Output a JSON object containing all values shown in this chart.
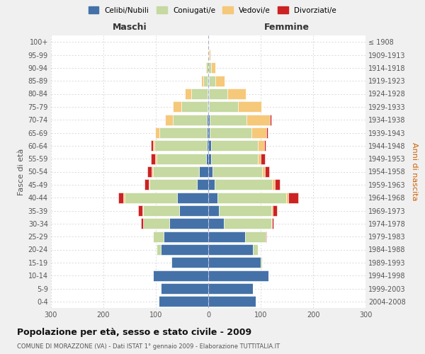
{
  "age_groups": [
    "0-4",
    "5-9",
    "10-14",
    "15-19",
    "20-24",
    "25-29",
    "30-34",
    "35-39",
    "40-44",
    "45-49",
    "50-54",
    "55-59",
    "60-64",
    "65-69",
    "70-74",
    "75-79",
    "80-84",
    "85-89",
    "90-94",
    "95-99",
    "100+"
  ],
  "birth_years": [
    "2004-2008",
    "1999-2003",
    "1994-1998",
    "1989-1993",
    "1984-1988",
    "1979-1983",
    "1974-1978",
    "1969-1973",
    "1964-1968",
    "1959-1963",
    "1954-1958",
    "1949-1953",
    "1944-1948",
    "1939-1943",
    "1934-1938",
    "1929-1933",
    "1924-1928",
    "1919-1923",
    "1914-1918",
    "1909-1913",
    "≤ 1908"
  ],
  "male": {
    "celibi": [
      95,
      90,
      105,
      70,
      90,
      85,
      75,
      55,
      60,
      22,
      18,
      4,
      3,
      3,
      3,
      2,
      2,
      1,
      0,
      0,
      0
    ],
    "coniugati": [
      0,
      0,
      0,
      2,
      8,
      20,
      50,
      70,
      100,
      90,
      88,
      95,
      100,
      90,
      65,
      50,
      30,
      8,
      4,
      2,
      1
    ],
    "vedovi": [
      0,
      0,
      0,
      0,
      0,
      0,
      0,
      1,
      2,
      2,
      2,
      2,
      3,
      8,
      15,
      15,
      12,
      5,
      2,
      0,
      0
    ],
    "divorziati": [
      0,
      0,
      0,
      0,
      0,
      1,
      3,
      8,
      10,
      8,
      8,
      8,
      3,
      0,
      0,
      0,
      0,
      0,
      0,
      0,
      0
    ]
  },
  "female": {
    "nubili": [
      90,
      85,
      115,
      100,
      85,
      70,
      30,
      20,
      18,
      12,
      8,
      5,
      5,
      3,
      3,
      2,
      2,
      1,
      0,
      0,
      0
    ],
    "coniugate": [
      0,
      0,
      0,
      3,
      10,
      40,
      90,
      100,
      130,
      110,
      95,
      90,
      90,
      80,
      70,
      55,
      35,
      12,
      5,
      2,
      1
    ],
    "vedove": [
      0,
      0,
      0,
      0,
      0,
      0,
      1,
      3,
      5,
      5,
      5,
      5,
      12,
      28,
      45,
      45,
      35,
      18,
      8,
      2,
      0
    ],
    "divorziate": [
      0,
      0,
      0,
      0,
      0,
      1,
      3,
      8,
      18,
      10,
      8,
      8,
      3,
      2,
      2,
      0,
      0,
      0,
      0,
      0,
      0
    ]
  },
  "colors": {
    "celibi": "#4472a8",
    "coniugati": "#c5d9a0",
    "vedovi": "#f5c87a",
    "divorziati": "#cc2222"
  },
  "title": "Popolazione per età, sesso e stato civile - 2009",
  "subtitle": "COMUNE DI MORAZZONE (VA) - Dati ISTAT 1° gennaio 2009 - Elaborazione TUTTITALIA.IT",
  "xlabel_left": "Maschi",
  "xlabel_right": "Femmine",
  "ylabel_left": "Fasce di età",
  "ylabel_right": "Anni di nascita",
  "xlim": 300,
  "legend_labels": [
    "Celibi/Nubili",
    "Coniugati/e",
    "Vedovi/e",
    "Divorziati/e"
  ],
  "bg_color": "#f0f0f0",
  "plot_bg": "#ffffff"
}
